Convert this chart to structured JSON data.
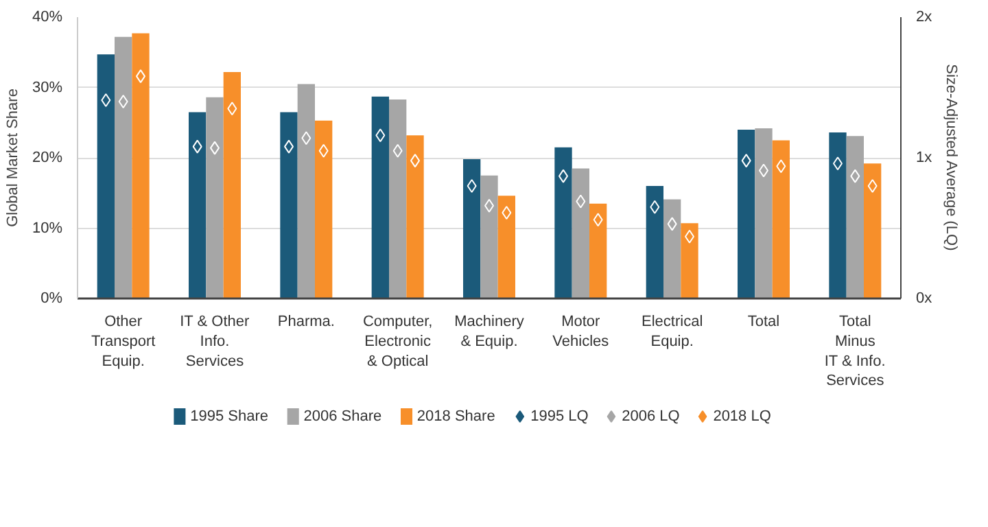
{
  "chart_data": {
    "type": "bar",
    "ylabel": "Global Market Share",
    "y2label": "Size-Adjusted Average (LQ)",
    "categories": [
      "Other\nTransport\nEquip.",
      "IT & Other\nInfo.\nServices",
      "Pharma.",
      "Computer,\nElectronic\n& Optical",
      "Machinery\n& Equip.",
      "Motor\nVehicles",
      "Electrical\nEquip.",
      "Total",
      "Total\nMinus\nIT & Info.\nServices"
    ],
    "series": [
      {
        "name": "1995 Share",
        "color": "#1b5a7a",
        "values": [
          34.7,
          26.5,
          26.5,
          28.7,
          19.8,
          21.5,
          16.0,
          24.0,
          23.6
        ]
      },
      {
        "name": "2006 Share",
        "color": "#a6a6a6",
        "values": [
          37.2,
          28.6,
          30.5,
          28.3,
          17.5,
          18.5,
          14.1,
          24.2,
          23.1
        ]
      },
      {
        "name": "2018 Share",
        "color": "#f78f2a",
        "values": [
          37.7,
          32.2,
          25.3,
          23.2,
          14.6,
          13.5,
          10.7,
          22.5,
          19.2
        ]
      },
      {
        "name": "1995 LQ",
        "type": "scatter",
        "axis": "y2",
        "color": "#1b5a7a",
        "values": [
          1.41,
          1.08,
          1.08,
          1.16,
          0.8,
          0.87,
          0.65,
          0.98,
          0.96
        ]
      },
      {
        "name": "2006 LQ",
        "type": "scatter",
        "axis": "y2",
        "color": "#a6a6a6",
        "values": [
          1.4,
          1.07,
          1.14,
          1.05,
          0.66,
          0.69,
          0.53,
          0.91,
          0.87
        ]
      },
      {
        "name": "2018 LQ",
        "type": "scatter",
        "axis": "y2",
        "color": "#f78f2a",
        "values": [
          1.58,
          1.35,
          1.05,
          0.98,
          0.61,
          0.56,
          0.44,
          0.94,
          0.8
        ]
      }
    ],
    "ylim": [
      0,
      40
    ],
    "yticks": [
      {
        "value": 0,
        "label": "0%"
      },
      {
        "value": 10,
        "label": "10%"
      },
      {
        "value": 20,
        "label": "20%"
      },
      {
        "value": 30,
        "label": "30%"
      },
      {
        "value": 40,
        "label": "40%"
      }
    ],
    "y2lim": [
      0,
      2
    ],
    "y2ticks": [
      {
        "value": 0,
        "label": "0x"
      },
      {
        "value": 1,
        "label": "1x"
      },
      {
        "value": 2,
        "label": "2x"
      }
    ],
    "grid": true,
    "legend": "bottom",
    "marker": "diamond"
  }
}
